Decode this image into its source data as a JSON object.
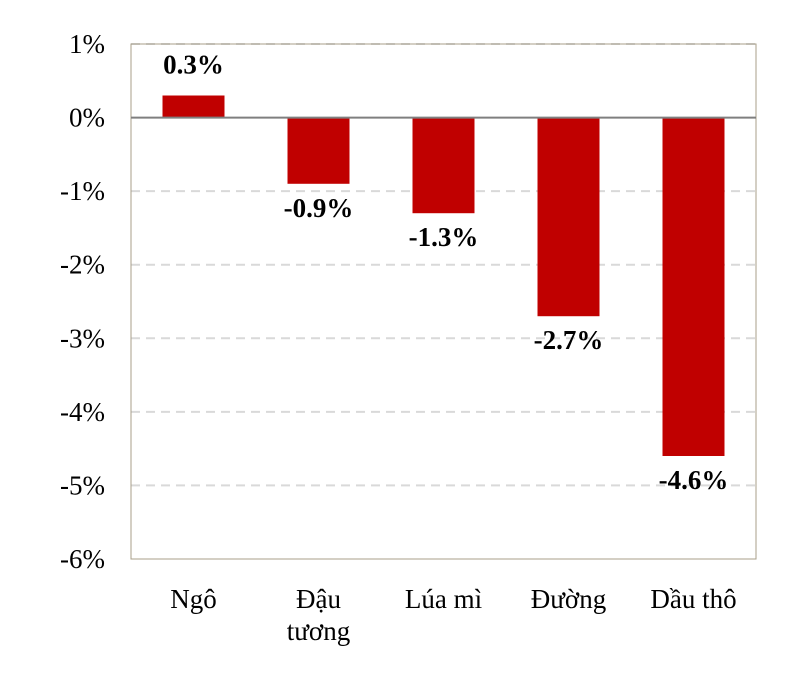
{
  "chart_data": {
    "type": "bar",
    "categories": [
      [
        "Ngô"
      ],
      [
        "Đậu",
        "tương"
      ],
      [
        "Lúa mì"
      ],
      [
        "Đường"
      ],
      [
        "Dầu thô"
      ]
    ],
    "values": [
      0.3,
      -0.9,
      -1.3,
      -2.7,
      -4.6
    ],
    "data_labels": [
      "0.3%",
      "-0.9%",
      "-1.3%",
      "-2.7%",
      "-4.6%"
    ],
    "ylim": [
      -6,
      1
    ],
    "yticks": [
      1,
      0,
      -1,
      -2,
      -3,
      -4,
      -5,
      -6
    ],
    "ytick_labels": [
      "1%",
      "0%",
      "-1%",
      "-2%",
      "-3%",
      "-4%",
      "-5%",
      "-6%"
    ],
    "grid": true,
    "bar_color": "#c00000",
    "zero_line_color": "#7f7f7f",
    "grid_color": "#d9d9d9",
    "frame_color": "#a89f8a",
    "title": "",
    "xlabel": "",
    "ylabel": ""
  }
}
